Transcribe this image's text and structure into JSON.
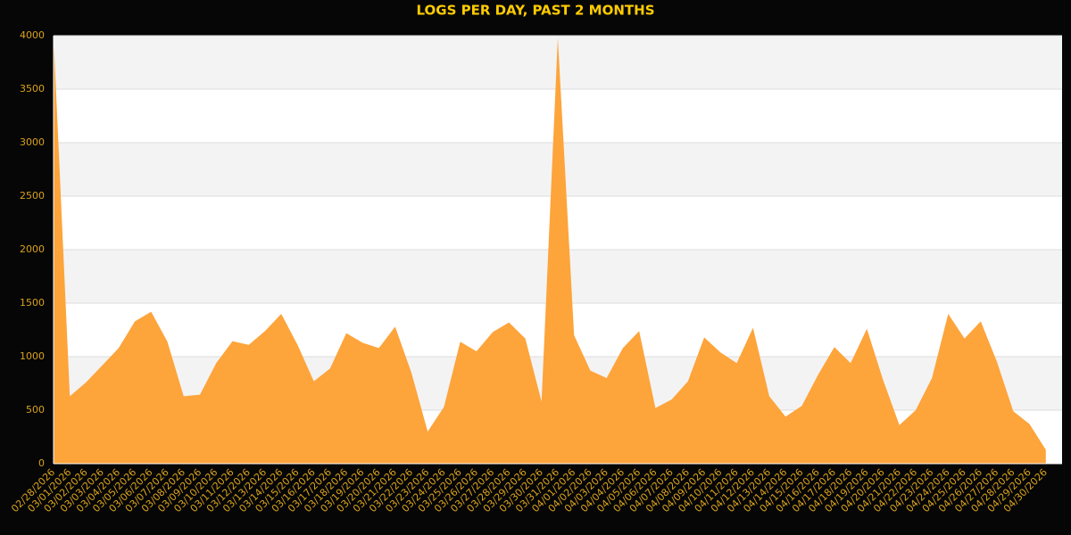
{
  "chart_data": {
    "type": "area",
    "title": "LOGS PER DAY, PAST 2 MONTHS",
    "categories": [
      "02/28/2026",
      "03/01/2026",
      "03/02/2026",
      "03/03/2026",
      "03/04/2026",
      "03/05/2026",
      "03/06/2026",
      "03/07/2026",
      "03/08/2026",
      "03/09/2026",
      "03/10/2026",
      "03/11/2026",
      "03/12/2026",
      "03/13/2026",
      "03/14/2026",
      "03/15/2026",
      "03/16/2026",
      "03/17/2026",
      "03/18/2026",
      "03/19/2026",
      "03/20/2026",
      "03/21/2026",
      "03/22/2026",
      "03/23/2026",
      "03/24/2026",
      "03/25/2026",
      "03/26/2026",
      "03/27/2026",
      "03/28/2026",
      "03/29/2026",
      "03/30/2026",
      "03/31/2026",
      "04/01/2026",
      "04/02/2026",
      "04/03/2026",
      "04/04/2026",
      "04/05/2026",
      "04/06/2026",
      "04/07/2026",
      "04/08/2026",
      "04/09/2026",
      "04/10/2026",
      "04/11/2026",
      "04/12/2026",
      "04/13/2026",
      "04/14/2026",
      "04/15/2026",
      "04/16/2026",
      "04/17/2026",
      "04/18/2026",
      "04/19/2026",
      "04/20/2026",
      "04/21/2026",
      "04/22/2026",
      "04/23/2026",
      "04/24/2026",
      "04/25/2026",
      "04/26/2026",
      "04/27/2026",
      "04/28/2026",
      "04/29/2026",
      "04/30/2026"
    ],
    "values": [
      4000,
      630,
      760,
      920,
      1080,
      1330,
      1420,
      1140,
      630,
      645,
      940,
      1145,
      1110,
      1240,
      1400,
      1110,
      770,
      890,
      1220,
      1130,
      1080,
      1280,
      850,
      300,
      530,
      1140,
      1050,
      1230,
      1320,
      1170,
      580,
      3980,
      1200,
      870,
      800,
      1080,
      1240,
      520,
      600,
      770,
      1180,
      1040,
      940,
      1270,
      630,
      440,
      540,
      830,
      1090,
      940,
      1260,
      780,
      360,
      500,
      800,
      1400,
      1170,
      1330,
      950,
      490,
      370,
      130
    ],
    "color": "#fda43b",
    "ylim": [
      0,
      4000
    ],
    "yticks": [
      0,
      500,
      1000,
      1500,
      2000,
      2500,
      3000,
      3500,
      4000
    ],
    "grid": true
  }
}
